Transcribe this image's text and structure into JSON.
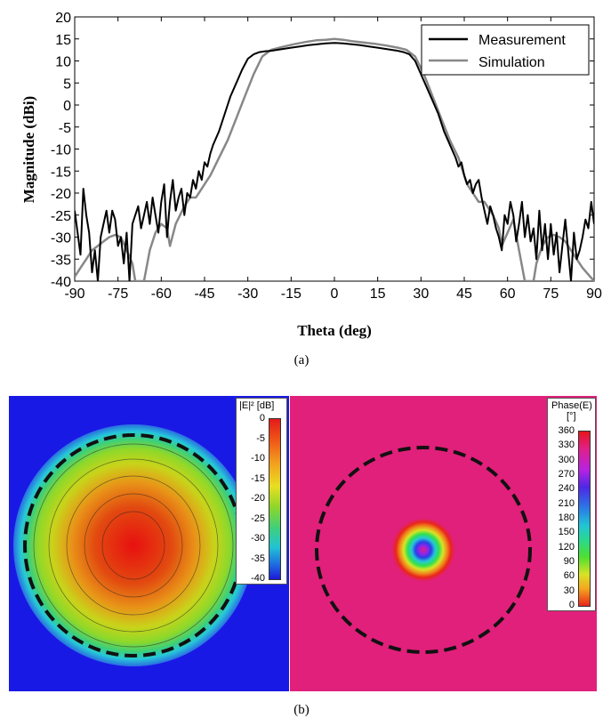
{
  "chart_data": [
    {
      "type": "line",
      "title": "",
      "xlabel": "Theta (deg)",
      "ylabel": "Magnitude (dBi)",
      "xlim": [
        -90,
        90
      ],
      "ylim": [
        -40,
        20
      ],
      "xticks": [
        -90,
        -75,
        -60,
        -45,
        -30,
        -15,
        0,
        15,
        30,
        45,
        60,
        75,
        90
      ],
      "yticks": [
        20,
        15,
        10,
        5,
        0,
        -5,
        -10,
        -15,
        -20,
        -25,
        -30,
        -35,
        -40
      ],
      "legend_position": "top-right",
      "grid": false,
      "series": [
        {
          "name": "Measurement",
          "color": "#000000",
          "x": [
            -90,
            -88,
            -87,
            -86,
            -85,
            -84,
            -83,
            -82,
            -81,
            -80,
            -79,
            -78,
            -77,
            -76,
            -75,
            -74,
            -73,
            -72,
            -71,
            -70,
            -69,
            -68,
            -67,
            -66,
            -65,
            -64,
            -63,
            -62,
            -61,
            -60,
            -59,
            -58,
            -57,
            -56,
            -55,
            -54,
            -53,
            -52,
            -51,
            -50,
            -49,
            -48,
            -47,
            -46,
            -45,
            -44,
            -43,
            -42,
            -40,
            -38,
            -36,
            -34,
            -32,
            -30,
            -28,
            -26,
            -24,
            -22,
            -20,
            -18,
            -15,
            -12,
            -9,
            -6,
            -3,
            0,
            3,
            6,
            9,
            12,
            15,
            18,
            20,
            22,
            24,
            26,
            28,
            30,
            32,
            34,
            36,
            38,
            40,
            42,
            43,
            44,
            45,
            46,
            47,
            48,
            49,
            50,
            51,
            52,
            53,
            54,
            55,
            56,
            57,
            58,
            59,
            60,
            61,
            62,
            63,
            64,
            65,
            66,
            67,
            68,
            69,
            70,
            71,
            72,
            73,
            74,
            75,
            76,
            77,
            78,
            79,
            80,
            81,
            82,
            83,
            84,
            85,
            86,
            87,
            88,
            89,
            90
          ],
          "y": [
            -24,
            -34,
            -19,
            -25,
            -29,
            -38,
            -33,
            -40,
            -30,
            -27,
            -24,
            -29,
            -24,
            -26,
            -32,
            -30,
            -36,
            -29,
            -40,
            -27,
            -25,
            -23,
            -28,
            -25,
            -22,
            -27,
            -21,
            -25,
            -29,
            -22,
            -18,
            -30,
            -22,
            -17,
            -24,
            -21,
            -19,
            -25,
            -20,
            -21,
            -17,
            -19,
            -15,
            -17,
            -13,
            -14,
            -11,
            -9,
            -6,
            -2,
            2,
            5,
            8,
            10.5,
            11.5,
            12,
            12.2,
            12.3,
            12.5,
            12.7,
            13,
            13.3,
            13.6,
            13.8,
            14,
            14.1,
            14,
            13.8,
            13.6,
            13.3,
            13,
            12.7,
            12.5,
            12.3,
            12,
            11.5,
            10,
            7,
            4,
            1,
            -2,
            -6,
            -9,
            -12,
            -14,
            -13,
            -16,
            -18,
            -17,
            -20,
            -18,
            -17,
            -21,
            -24,
            -27,
            -23,
            -25,
            -28,
            -30,
            -33,
            -25,
            -27,
            -22,
            -25,
            -31,
            -27,
            -22,
            -30,
            -25,
            -31,
            -28,
            -35,
            -24,
            -33,
            -27,
            -35,
            -27,
            -34,
            -29,
            -38,
            -32,
            -26,
            -33,
            -40,
            -29,
            -35,
            -33,
            -30,
            -26,
            -28,
            -22,
            -27
          ]
        },
        {
          "name": "Simulation",
          "color": "#888888",
          "x": [
            -90,
            -88,
            -86,
            -84,
            -82,
            -80,
            -78,
            -76,
            -74,
            -72,
            -70,
            -69,
            -66,
            -64,
            -62,
            -60,
            -58,
            -57,
            -55,
            -52,
            -50,
            -48,
            -46,
            -45,
            -43,
            -40,
            -37,
            -34,
            -31,
            -28,
            -25,
            -22,
            -18,
            -14,
            -10,
            -6,
            -3,
            0,
            3,
            6,
            10,
            14,
            18,
            22,
            25,
            28,
            31,
            34,
            37,
            40,
            43,
            45,
            46,
            48,
            50,
            52,
            55,
            57,
            58,
            60,
            62,
            64,
            66,
            69,
            70,
            72,
            74,
            76,
            78,
            80,
            82,
            84,
            86,
            88,
            90
          ],
          "y": [
            -39,
            -37,
            -35,
            -33,
            -32,
            -31,
            -30,
            -29.5,
            -30,
            -33,
            -36,
            -40,
            -40,
            -33,
            -29,
            -27,
            -28,
            -32,
            -27,
            -23,
            -21,
            -21,
            -19,
            -18,
            -16,
            -12,
            -8,
            -3,
            2,
            7,
            11,
            12.5,
            13.2,
            13.8,
            14.3,
            14.7,
            14.8,
            15,
            14.8,
            14.5,
            14.2,
            13.9,
            13.5,
            13,
            12.5,
            11,
            7,
            2,
            -3,
            -8,
            -12,
            -16,
            -18,
            -20,
            -22,
            -22,
            -25,
            -28,
            -32,
            -29,
            -26,
            -33,
            -40,
            -40,
            -36,
            -32,
            -30,
            -29.5,
            -30,
            -31,
            -33,
            -35,
            -37,
            -38.5,
            -40
          ]
        }
      ]
    },
    {
      "type": "heatmap",
      "title": "",
      "quantity": "|E|² [dB]",
      "colorbar_title": "|E|² [dB]",
      "colorbar_ticks": [
        "0",
        "-5",
        "-10",
        "-15",
        "-20",
        "-25",
        "-30",
        "-35",
        "-40"
      ],
      "range": [
        -40,
        0
      ],
      "colorbar_position": "top-right"
    },
    {
      "type": "heatmap",
      "title": "",
      "quantity": "Phase(E) [°]",
      "colorbar_title_line1": "Phase(E)",
      "colorbar_title_line2": "[°]",
      "colorbar_ticks": [
        "360",
        "330",
        "300",
        "270",
        "240",
        "210",
        "180",
        "150",
        "120",
        "90",
        "60",
        "30",
        "0"
      ],
      "range": [
        0,
        360
      ],
      "colorbar_position": "top-right"
    }
  ],
  "captions": {
    "a": "(a)",
    "b": "(b)"
  }
}
